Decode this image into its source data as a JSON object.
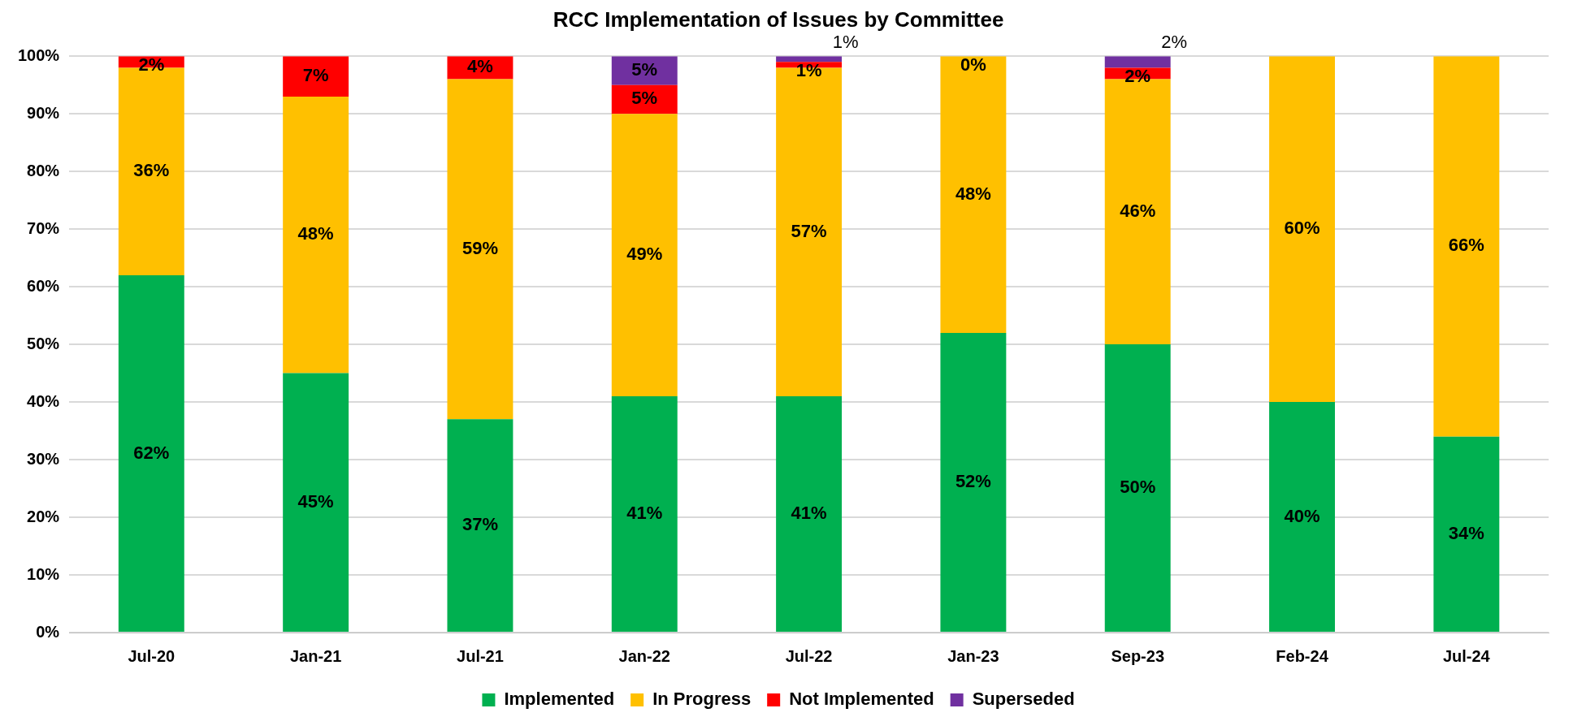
{
  "chart_data": {
    "type": "bar",
    "stacked": true,
    "title": "RCC Implementation of Issues by Committee",
    "categories": [
      "Jul-20",
      "Jan-21",
      "Jul-21",
      "Jan-22",
      "Jul-22",
      "Jan-23",
      "Sep-23",
      "Feb-24",
      "Jul-24"
    ],
    "series": [
      {
        "name": "Implemented",
        "color": "#00b050",
        "values": [
          62,
          45,
          37,
          41,
          41,
          52,
          50,
          40,
          34
        ],
        "value_labels": [
          "62%",
          "45%",
          "37%",
          "41%",
          "41%",
          "52%",
          "50%",
          "40%",
          "34%"
        ]
      },
      {
        "name": "In Progress",
        "color": "#ffc000",
        "values": [
          36,
          48,
          59,
          49,
          57,
          48,
          46,
          60,
          66
        ],
        "value_labels": [
          "36%",
          "48%",
          "59%",
          "49%",
          "57%",
          "48%",
          "46%",
          "60%",
          "66%"
        ]
      },
      {
        "name": "Not Implemented",
        "color": "#ff0000",
        "values": [
          2,
          7,
          4,
          5,
          1,
          0,
          2,
          null,
          null
        ],
        "value_labels": [
          "2%",
          "7%",
          "4%",
          "5%",
          "1%",
          "0%",
          "2%",
          null,
          null
        ]
      },
      {
        "name": "Superseded",
        "color": "#7030a0",
        "values": [
          null,
          null,
          null,
          5,
          1,
          null,
          2,
          null,
          null
        ],
        "value_labels": [
          null,
          null,
          null,
          "5%",
          "1%",
          null,
          "2%",
          null,
          null
        ]
      }
    ],
    "ylim": [
      0,
      100
    ],
    "yticks": [
      {
        "value": 0,
        "label": "0%"
      },
      {
        "value": 10,
        "label": "10%"
      },
      {
        "value": 20,
        "label": "20%"
      },
      {
        "value": 30,
        "label": "30%"
      },
      {
        "value": 40,
        "label": "40%"
      },
      {
        "value": 50,
        "label": "50%"
      },
      {
        "value": 60,
        "label": "60%"
      },
      {
        "value": 70,
        "label": "70%"
      },
      {
        "value": 80,
        "label": "80%"
      },
      {
        "value": 90,
        "label": "90%"
      },
      {
        "value": 100,
        "label": "100%"
      }
    ],
    "grid": "y",
    "legend": "bottom"
  }
}
